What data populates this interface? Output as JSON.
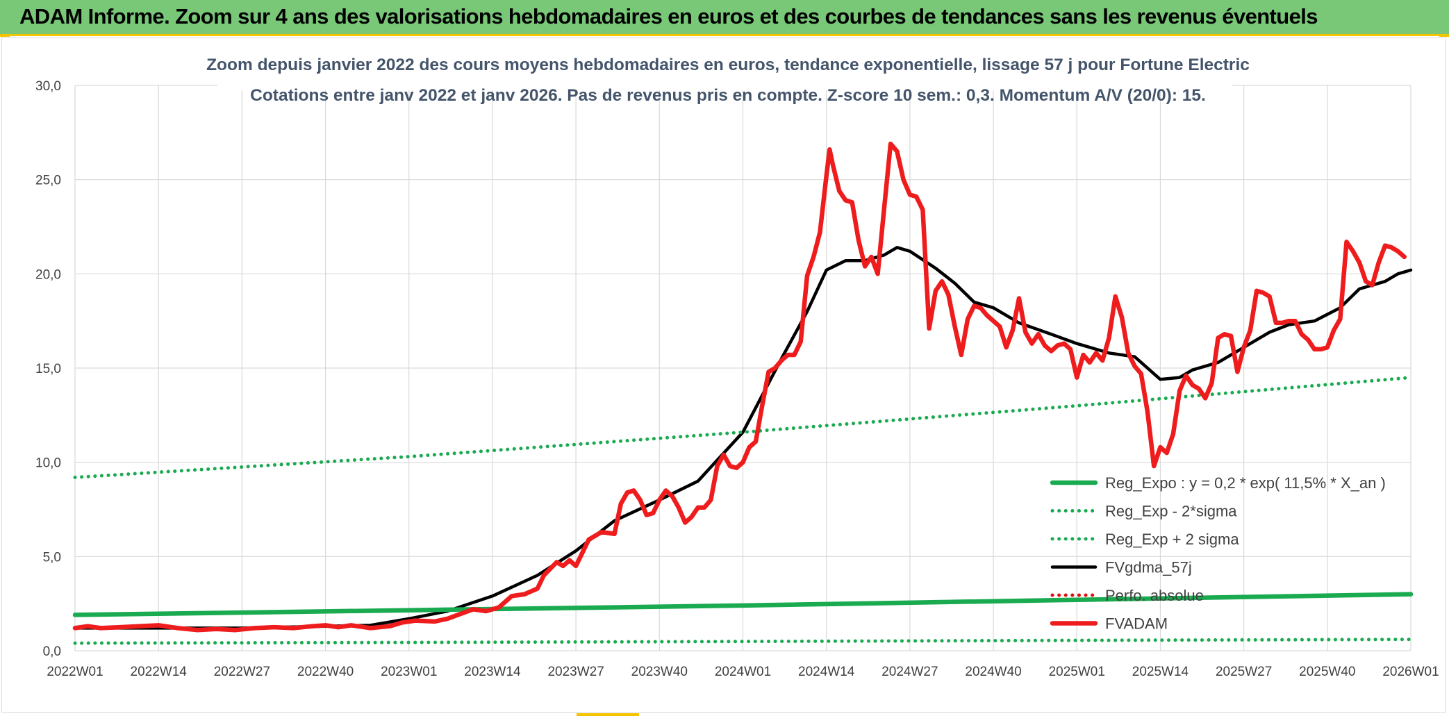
{
  "header": {
    "title": "ADAM Informe. Zoom sur 4 ans des valorisations hebdomadaires en euros et des courbes de tendances sans les revenus éventuels"
  },
  "colors": {
    "title_bar": "#78c878",
    "accent_yellow": "#f4c400",
    "reg_expo": "#1aaa50",
    "fvgdma": "#000000",
    "perfo": "#e01010",
    "fvadam": "#ee1c1c",
    "grid": "#d9d9d9",
    "axis_text": "#404040",
    "subtitle_text": "#44546a"
  },
  "chart_data": {
    "type": "line",
    "title": "Zoom depuis janvier 2022 des cours moyens hebdomadaires en euros, tendance exponentielle, lissage 57 j pour Fortune Electric",
    "subtitle": "Cotations entre janv 2022 et janv 2026. Pas de revenus pris en compte. Z-score 10 sem.: 0,3. Momentum A/V (20/0): 15.",
    "xlabel": "",
    "ylabel": "",
    "x_range": [
      0,
      208
    ],
    "ylim": [
      0,
      30
    ],
    "y_ticks": [
      0,
      5,
      10,
      15,
      20,
      25,
      30
    ],
    "y_tick_labels": [
      "0,0",
      "5,0",
      "10,0",
      "15,0",
      "20,0",
      "25,0",
      "30,0"
    ],
    "x_ticks": [
      0,
      13,
      26,
      39,
      52,
      65,
      78,
      91,
      104,
      117,
      130,
      143,
      156,
      169,
      182,
      195,
      208
    ],
    "x_tick_labels": [
      "2022W01",
      "2022W14",
      "2022W27",
      "2022W40",
      "2023W01",
      "2023W14",
      "2023W27",
      "2023W40",
      "2024W01",
      "2024W14",
      "2024W27",
      "2024W40",
      "2025W01",
      "2025W14",
      "2025W27",
      "2025W40",
      "2026W01"
    ],
    "grid": true,
    "legend_position": "bottom-right",
    "series": [
      {
        "name": "Reg_Expo : y = 0,2 * exp( 11,5% *  X_an )",
        "style": "solid-thick",
        "color": "#1aaa50",
        "points": [
          [
            0,
            1.9
          ],
          [
            52,
            2.15
          ],
          [
            104,
            2.4
          ],
          [
            156,
            2.7
          ],
          [
            208,
            3.0
          ]
        ]
      },
      {
        "name": "Reg_Exp - 2*sigma",
        "style": "dotted",
        "color": "#1aaa50",
        "points": [
          [
            0,
            0.4
          ],
          [
            52,
            0.44
          ],
          [
            104,
            0.49
          ],
          [
            156,
            0.55
          ],
          [
            208,
            0.6
          ]
        ]
      },
      {
        "name": "Reg_Exp + 2 sigma",
        "style": "dotted",
        "color": "#1aaa50",
        "points": [
          [
            0,
            9.2
          ],
          [
            52,
            10.3
          ],
          [
            104,
            11.6
          ],
          [
            156,
            13.0
          ],
          [
            208,
            14.5
          ]
        ]
      },
      {
        "name": "FVgdma_57j",
        "style": "solid",
        "color": "#000000",
        "points": [
          [
            0,
            1.2
          ],
          [
            13,
            1.2
          ],
          [
            26,
            1.2
          ],
          [
            39,
            1.3
          ],
          [
            46,
            1.35
          ],
          [
            52,
            1.7
          ],
          [
            58,
            2.1
          ],
          [
            65,
            2.9
          ],
          [
            72,
            4.0
          ],
          [
            78,
            5.3
          ],
          [
            84,
            6.9
          ],
          [
            91,
            8.0
          ],
          [
            97,
            9.0
          ],
          [
            104,
            11.6
          ],
          [
            110,
            15.5
          ],
          [
            114,
            18.0
          ],
          [
            117,
            20.2
          ],
          [
            120,
            20.7
          ],
          [
            123,
            20.7
          ],
          [
            126,
            21.0
          ],
          [
            128,
            21.4
          ],
          [
            130,
            21.2
          ],
          [
            134,
            20.3
          ],
          [
            137,
            19.5
          ],
          [
            140,
            18.5
          ],
          [
            143,
            18.2
          ],
          [
            147,
            17.4
          ],
          [
            152,
            16.8
          ],
          [
            156,
            16.3
          ],
          [
            161,
            15.8
          ],
          [
            165,
            15.6
          ],
          [
            169,
            14.4
          ],
          [
            172,
            14.5
          ],
          [
            174,
            14.9
          ],
          [
            178,
            15.3
          ],
          [
            182,
            16.1
          ],
          [
            186,
            16.9
          ],
          [
            189,
            17.3
          ],
          [
            193,
            17.5
          ],
          [
            197,
            18.2
          ],
          [
            200,
            19.2
          ],
          [
            204,
            19.6
          ],
          [
            206,
            20.0
          ],
          [
            208,
            20.2
          ]
        ]
      },
      {
        "name": "Perfo. absolue",
        "style": "dotted",
        "color": "#e01010",
        "points": []
      },
      {
        "name": "FVADAM",
        "style": "solid-thick",
        "color": "#ee1c1c",
        "points": [
          [
            0,
            1.2
          ],
          [
            2,
            1.3
          ],
          [
            4,
            1.2
          ],
          [
            7,
            1.25
          ],
          [
            10,
            1.3
          ],
          [
            13,
            1.35
          ],
          [
            16,
            1.2
          ],
          [
            19,
            1.1
          ],
          [
            22,
            1.15
          ],
          [
            25,
            1.1
          ],
          [
            28,
            1.2
          ],
          [
            31,
            1.25
          ],
          [
            34,
            1.2
          ],
          [
            37,
            1.3
          ],
          [
            39,
            1.35
          ],
          [
            41,
            1.25
          ],
          [
            43,
            1.35
          ],
          [
            46,
            1.2
          ],
          [
            49,
            1.3
          ],
          [
            51,
            1.5
          ],
          [
            53,
            1.6
          ],
          [
            56,
            1.55
          ],
          [
            58,
            1.7
          ],
          [
            60,
            1.95
          ],
          [
            62,
            2.2
          ],
          [
            64,
            2.1
          ],
          [
            66,
            2.3
          ],
          [
            68,
            2.9
          ],
          [
            70,
            3.0
          ],
          [
            72,
            3.3
          ],
          [
            73,
            4.0
          ],
          [
            75,
            4.7
          ],
          [
            76,
            4.5
          ],
          [
            77,
            4.8
          ],
          [
            78,
            4.5
          ],
          [
            79,
            5.2
          ],
          [
            80,
            5.9
          ],
          [
            82,
            6.3
          ],
          [
            84,
            6.2
          ],
          [
            85,
            7.8
          ],
          [
            86,
            8.4
          ],
          [
            87,
            8.5
          ],
          [
            88,
            8.0
          ],
          [
            89,
            7.2
          ],
          [
            90,
            7.3
          ],
          [
            91,
            8.0
          ],
          [
            92,
            8.5
          ],
          [
            93,
            8.2
          ],
          [
            94,
            7.6
          ],
          [
            95,
            6.8
          ],
          [
            96,
            7.1
          ],
          [
            97,
            7.6
          ],
          [
            98,
            7.6
          ],
          [
            99,
            8.0
          ],
          [
            100,
            9.8
          ],
          [
            101,
            10.4
          ],
          [
            102,
            9.8
          ],
          [
            103,
            9.7
          ],
          [
            104,
            10.0
          ],
          [
            105,
            10.8
          ],
          [
            106,
            11.1
          ],
          [
            107,
            13.0
          ],
          [
            108,
            14.8
          ],
          [
            109,
            15.0
          ],
          [
            110,
            15.4
          ],
          [
            111,
            15.7
          ],
          [
            112,
            15.7
          ],
          [
            113,
            16.4
          ],
          [
            114,
            19.9
          ],
          [
            115,
            20.9
          ],
          [
            116,
            22.2
          ],
          [
            117,
            25.2
          ],
          [
            117.5,
            26.6
          ],
          [
            118,
            25.8
          ],
          [
            119,
            24.4
          ],
          [
            120,
            23.9
          ],
          [
            121,
            23.8
          ],
          [
            122,
            21.8
          ],
          [
            123,
            20.4
          ],
          [
            124,
            20.9
          ],
          [
            125,
            20.0
          ],
          [
            126,
            23.5
          ],
          [
            127,
            26.9
          ],
          [
            128,
            26.5
          ],
          [
            129,
            25.0
          ],
          [
            130,
            24.2
          ],
          [
            131,
            24.1
          ],
          [
            132,
            23.4
          ],
          [
            133,
            17.1
          ],
          [
            134,
            19.1
          ],
          [
            135,
            19.6
          ],
          [
            136,
            18.9
          ],
          [
            137,
            17.2
          ],
          [
            138,
            15.7
          ],
          [
            139,
            17.6
          ],
          [
            140,
            18.3
          ],
          [
            141,
            18.2
          ],
          [
            142,
            17.8
          ],
          [
            143,
            17.5
          ],
          [
            144,
            17.2
          ],
          [
            145,
            16.1
          ],
          [
            146,
            17.0
          ],
          [
            147,
            18.7
          ],
          [
            148,
            16.9
          ],
          [
            149,
            16.3
          ],
          [
            150,
            16.8
          ],
          [
            151,
            16.2
          ],
          [
            152,
            15.9
          ],
          [
            153,
            16.2
          ],
          [
            154,
            16.3
          ],
          [
            155,
            16.0
          ],
          [
            156,
            14.5
          ],
          [
            157,
            15.7
          ],
          [
            158,
            15.3
          ],
          [
            159,
            15.8
          ],
          [
            160,
            15.4
          ],
          [
            161,
            16.6
          ],
          [
            162,
            18.8
          ],
          [
            163,
            17.7
          ],
          [
            164,
            15.8
          ],
          [
            165,
            15.1
          ],
          [
            166,
            14.7
          ],
          [
            167,
            12.7
          ],
          [
            168,
            9.8
          ],
          [
            169,
            10.8
          ],
          [
            170,
            10.5
          ],
          [
            171,
            11.5
          ],
          [
            172,
            13.8
          ],
          [
            173,
            14.6
          ],
          [
            174,
            14.1
          ],
          [
            175,
            13.9
          ],
          [
            176,
            13.4
          ],
          [
            177,
            14.2
          ],
          [
            178,
            16.6
          ],
          [
            179,
            16.8
          ],
          [
            180,
            16.7
          ],
          [
            181,
            14.8
          ],
          [
            182,
            16.1
          ],
          [
            183,
            17.0
          ],
          [
            184,
            19.1
          ],
          [
            185,
            19.0
          ],
          [
            186,
            18.8
          ],
          [
            187,
            17.4
          ],
          [
            188,
            17.4
          ],
          [
            189,
            17.5
          ],
          [
            190,
            17.5
          ],
          [
            191,
            16.8
          ],
          [
            192,
            16.5
          ],
          [
            193,
            16.0
          ],
          [
            194,
            16.0
          ],
          [
            195,
            16.1
          ],
          [
            196,
            17.0
          ],
          [
            197,
            17.6
          ],
          [
            198,
            21.7
          ],
          [
            199,
            21.2
          ],
          [
            200,
            20.6
          ],
          [
            201,
            19.6
          ],
          [
            202,
            19.4
          ],
          [
            203,
            20.6
          ],
          [
            204,
            21.5
          ],
          [
            205,
            21.4
          ],
          [
            206,
            21.2
          ],
          [
            207,
            20.9
          ]
        ]
      }
    ]
  }
}
